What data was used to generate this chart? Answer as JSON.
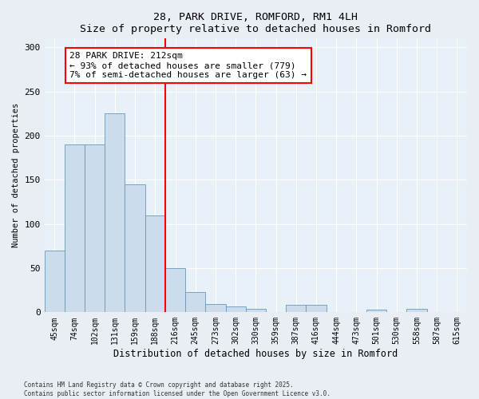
{
  "title1": "28, PARK DRIVE, ROMFORD, RM1 4LH",
  "title2": "Size of property relative to detached houses in Romford",
  "xlabel": "Distribution of detached houses by size in Romford",
  "ylabel": "Number of detached properties",
  "categories": [
    "45sqm",
    "74sqm",
    "102sqm",
    "131sqm",
    "159sqm",
    "188sqm",
    "216sqm",
    "245sqm",
    "273sqm",
    "302sqm",
    "330sqm",
    "359sqm",
    "387sqm",
    "416sqm",
    "444sqm",
    "473sqm",
    "501sqm",
    "530sqm",
    "558sqm",
    "587sqm",
    "615sqm"
  ],
  "values": [
    70,
    190,
    190,
    225,
    145,
    110,
    50,
    23,
    9,
    7,
    4,
    0,
    8,
    8,
    0,
    0,
    3,
    0,
    4,
    0,
    0
  ],
  "bar_color": "#ccdcec",
  "bar_edge_color": "#6699bb",
  "vline_color": "red",
  "vline_index": 6,
  "annotation_text": "28 PARK DRIVE: 212sqm\n← 93% of detached houses are smaller (779)\n7% of semi-detached houses are larger (63) →",
  "annotation_box_color": "white",
  "annotation_box_edge_color": "red",
  "ylim": [
    0,
    310
  ],
  "yticks": [
    0,
    50,
    100,
    150,
    200,
    250,
    300
  ],
  "footnote1": "Contains HM Land Registry data © Crown copyright and database right 2025.",
  "footnote2": "Contains public sector information licensed under the Open Government Licence v3.0.",
  "bg_color": "#e8eef4",
  "plot_bg_color": "#e8f0f8"
}
